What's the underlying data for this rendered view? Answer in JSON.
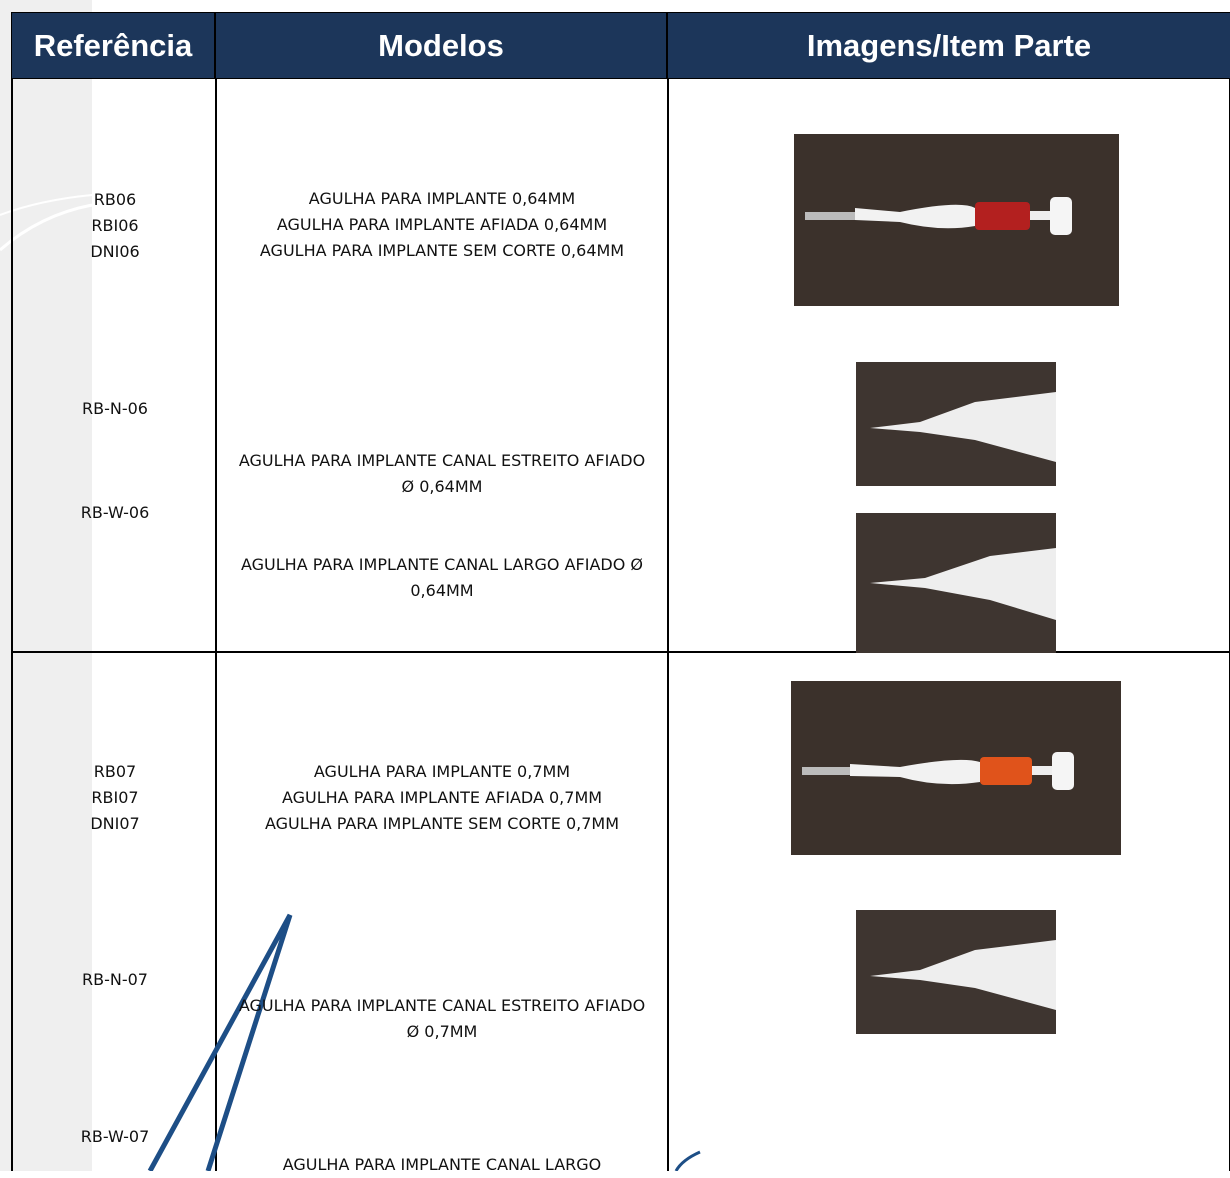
{
  "table": {
    "header": [
      "Referência",
      "Modelos",
      "Imagens/Item Parte"
    ],
    "rows": [
      {
        "groups": [
          {
            "references": [
              "RB06",
              "RBI06",
              "DNI06"
            ],
            "models": [
              "AGULHA PARA IMPLANTE 0,64MM",
              "AGULHA PARA IMPLANTE AFIADA 0,64MM",
              "AGULHA PARA IMPLANTE SEM CORTE 0,64MM"
            ]
          },
          {
            "references": [
              "RB-N-06"
            ],
            "models": [
              "AGULHA PARA IMPLANTE CANAL ESTREITO AFIADO Ø 0,64MM"
            ]
          },
          {
            "references": [
              "RB-W-06"
            ],
            "models": [
              "AGULHA PARA IMPLANTE CANAL LARGO AFIADO Ø 0,64MM"
            ]
          }
        ]
      },
      {
        "groups": [
          {
            "references": [
              "RB07",
              "RBI07",
              "DNI07"
            ],
            "models": [
              "AGULHA PARA IMPLANTE 0,7MM",
              "AGULHA PARA IMPLANTE AFIADA 0,7MM",
              "AGULHA PARA IMPLANTE SEM CORTE 0,7MM"
            ]
          },
          {
            "references": [
              "RB-N-07"
            ],
            "models": [
              "AGULHA PARA IMPLANTE CANAL ESTREITO AFIADO Ø 0,7MM"
            ]
          },
          {
            "references": [
              "RB-W-07"
            ],
            "models": [
              "AGULHA PARA IMPLANTE CANAL LARGO"
            ]
          }
        ]
      }
    ]
  }
}
